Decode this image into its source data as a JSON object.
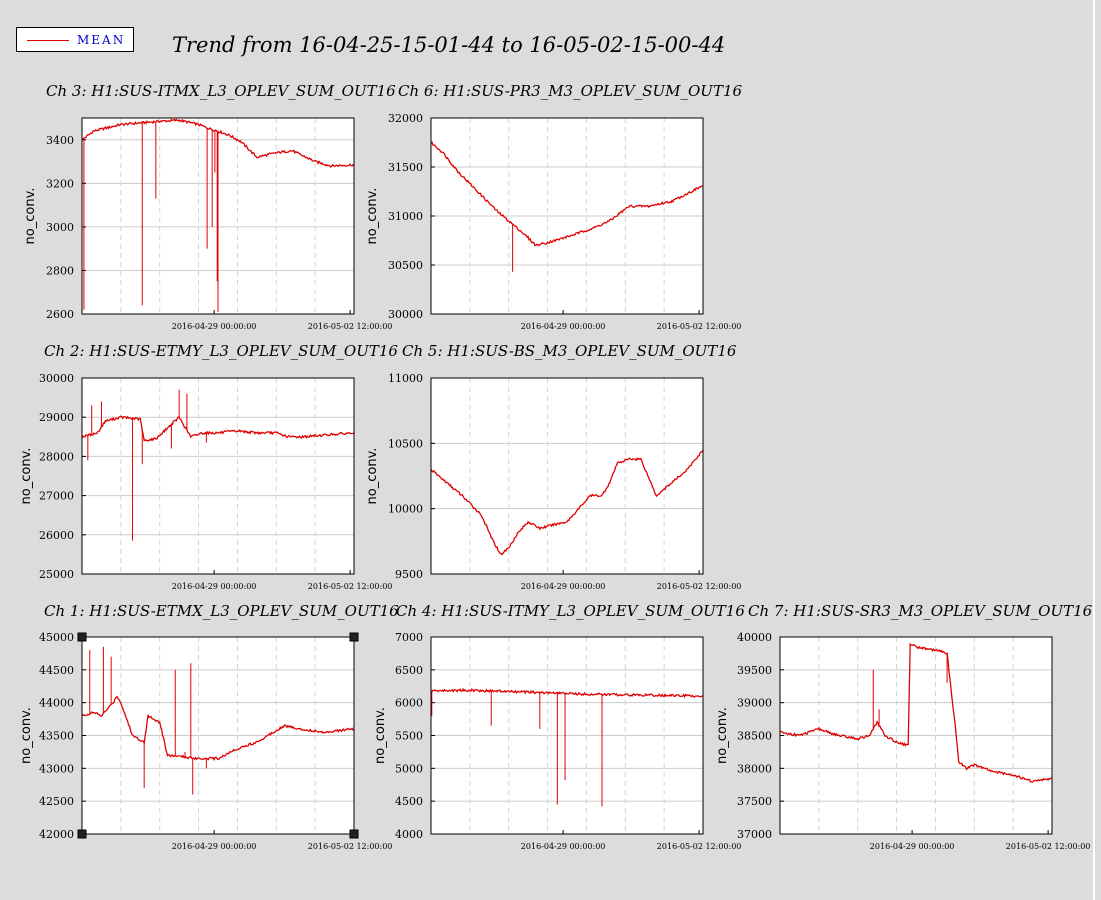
{
  "legend": {
    "label": "MEAN",
    "color": "#e00000"
  },
  "header": {
    "title": "Trend from 16-04-25-15-01-44 to 16-05-02-15-00-44"
  },
  "chart_data": [
    {
      "type": "line",
      "title": "Ch 3: H1:SUS-ITMX_L3_OPLEV_SUM_OUT16",
      "ylabel": "no_conv.",
      "ylim": [
        2600,
        3500
      ],
      "yticks": [
        2600,
        2800,
        3000,
        3200,
        3400
      ],
      "xticks": [
        "2016-04-29 00:00:00",
        "2016-05-02 12:00:00"
      ],
      "series": [
        {
          "x": [
            0,
            0.3,
            1,
            2,
            2.5,
            3,
            3.3,
            3.5,
            3.8,
            4.1,
            4.5,
            5,
            5.4,
            6,
            6.4,
            7
          ],
          "values": [
            3400,
            3440,
            3470,
            3485,
            3490,
            3470,
            3450,
            3440,
            3420,
            3390,
            3320,
            3340,
            3350,
            3300,
            3280,
            3285
          ],
          "spikes": [
            [
              0.05,
              2620
            ],
            [
              1.55,
              2640
            ],
            [
              1.9,
              3130
            ],
            [
              3.5,
              2610
            ],
            [
              3.22,
              2900
            ],
            [
              3.35,
              3000
            ],
            [
              3.48,
              2750
            ],
            [
              3.42,
              3250
            ]
          ]
        }
      ]
    },
    {
      "type": "line",
      "title": "Ch 6: H1:SUS-PR3_M3_OPLEV_SUM_OUT16",
      "ylabel": "no_conv.",
      "ylim": [
        30000,
        32000
      ],
      "yticks": [
        30000,
        30500,
        31000,
        31500,
        32000
      ],
      "xticks": [
        "2016-04-29 00:00:00",
        "2016-05-02 12:00:00"
      ],
      "series": [
        {
          "x": [
            0,
            0.3,
            0.7,
            1.2,
            1.7,
            2.3,
            2.7,
            3.2,
            3.6,
            4.2,
            4.6,
            5.1,
            5.6,
            6.2,
            7
          ],
          "values": [
            31750,
            31650,
            31450,
            31250,
            31050,
            30850,
            30700,
            30750,
            30800,
            30880,
            30950,
            31100,
            31100,
            31150,
            31310
          ],
          "spikes": [
            [
              2.1,
              30430
            ],
            [
              2.5,
              30800
            ]
          ]
        }
      ]
    },
    {
      "type": "line",
      "title": "Ch 2: H1:SUS-ETMY_L3_OPLEV_SUM_OUT16",
      "ylabel": "no_conv.",
      "ylim": [
        25000,
        30000
      ],
      "yticks": [
        25000,
        26000,
        27000,
        28000,
        29000,
        30000
      ],
      "xticks": [
        "2016-04-29 00:00:00",
        "2016-05-02 12:00:00"
      ],
      "series": [
        {
          "x": [
            0,
            0.4,
            0.6,
            1,
            1.5,
            1.6,
            1.9,
            2.5,
            2.8,
            3.1,
            3.5,
            4,
            4.5,
            5,
            5.3,
            5.7,
            6.3,
            7
          ],
          "values": [
            28500,
            28600,
            28900,
            29000,
            28950,
            28400,
            28450,
            29000,
            28500,
            28600,
            28600,
            28650,
            28600,
            28600,
            28500,
            28500,
            28550,
            28600
          ],
          "spikes": [
            [
              0.15,
              27900
            ],
            [
              0.25,
              29300
            ],
            [
              0.5,
              29400
            ],
            [
              1.3,
              25850
            ],
            [
              1.55,
              27800
            ],
            [
              2.3,
              28200
            ],
            [
              2.5,
              29700
            ],
            [
              2.7,
              29600
            ],
            [
              3.2,
              28350
            ]
          ]
        }
      ]
    },
    {
      "type": "line",
      "title": "Ch 5: H1:SUS-BS_M3_OPLEV_SUM_OUT16",
      "ylabel": "no_conv.",
      "ylim": [
        9500,
        11000
      ],
      "yticks": [
        9500,
        10000,
        10500,
        11000
      ],
      "xticks": [
        "2016-04-29 00:00:00",
        "2016-05-02 12:00:00"
      ],
      "series": [
        {
          "x": [
            0,
            0.4,
            0.8,
            1.3,
            1.6,
            1.8,
            2.0,
            2.2,
            2.5,
            2.8,
            3.2,
            3.5,
            3.8,
            4.1,
            4.4,
            4.6,
            4.8,
            5.1,
            5.4,
            5.8,
            6.2,
            6.6,
            7
          ],
          "values": [
            10300,
            10200,
            10100,
            9950,
            9750,
            9650,
            9700,
            9800,
            9900,
            9850,
            9880,
            9900,
            10000,
            10100,
            10100,
            10200,
            10350,
            10380,
            10380,
            10100,
            10200,
            10300,
            10450
          ],
          "spikes": []
        }
      ]
    },
    {
      "type": "line",
      "title": "Ch 1: H1:SUS-ETMX_L3_OPLEV_SUM_OUT16",
      "ylabel": "no_conv.",
      "ylim": [
        42000,
        45000
      ],
      "yticks": [
        42000,
        42500,
        43000,
        43500,
        44000,
        44500,
        45000
      ],
      "xticks": [
        "2016-04-29 00:00:00",
        "2016-05-02 12:00:00"
      ],
      "series": [
        {
          "x": [
            0,
            0.3,
            0.5,
            0.8,
            0.9,
            1.0,
            1.3,
            1.6,
            1.7,
            2.0,
            2.2,
            3.0,
            3.5,
            4.0,
            4.5,
            5.2,
            5.6,
            6.2,
            7
          ],
          "values": [
            43800,
            43850,
            43800,
            44000,
            44100,
            44000,
            43500,
            43400,
            43800,
            43700,
            43200,
            43150,
            43150,
            43300,
            43400,
            43650,
            43600,
            43550,
            43600
          ],
          "spikes": [
            [
              0.2,
              44800
            ],
            [
              0.55,
              44850
            ],
            [
              0.75,
              44700
            ],
            [
              1.6,
              42700
            ],
            [
              2.4,
              44500
            ],
            [
              2.65,
              43250
            ],
            [
              2.8,
              44600
            ],
            [
              2.85,
              42600
            ],
            [
              3.2,
              43000
            ]
          ]
        }
      ]
    },
    {
      "type": "line",
      "title": "Ch 4: H1:SUS-ITMY_L3_OPLEV_SUM_OUT16",
      "ylabel": "no_conv.",
      "ylim": [
        4000,
        7000
      ],
      "yticks": [
        4000,
        4500,
        5000,
        5500,
        6000,
        6500,
        7000
      ],
      "xticks": [
        "2016-04-29 00:00:00",
        "2016-05-02 12:00:00"
      ],
      "series": [
        {
          "x": [
            0,
            1,
            2,
            3,
            4,
            5,
            6,
            7
          ],
          "values": [
            6180,
            6190,
            6170,
            6150,
            6130,
            6120,
            6110,
            6100
          ],
          "spikes": [
            [
              0.02,
              5800
            ],
            [
              1.55,
              5650
            ],
            [
              2.8,
              5600
            ],
            [
              3.25,
              4450
            ],
            [
              3.45,
              4820
            ],
            [
              4.4,
              4420
            ]
          ]
        }
      ]
    },
    {
      "type": "line",
      "title": "Ch 7: H1:SUS-SR3_M3_OPLEV_SUM_OUT16",
      "ylabel": "no_conv.",
      "ylim": [
        37000,
        40000
      ],
      "yticks": [
        37000,
        37500,
        38000,
        38500,
        39000,
        39500,
        40000
      ],
      "xticks": [
        "2016-04-29 00:00:00",
        "2016-05-02 12:00:00"
      ],
      "series": [
        {
          "x": [
            0,
            0.5,
            1,
            1.5,
            2,
            2.3,
            2.5,
            2.7,
            3.0,
            3.3,
            3.35,
            3.5,
            4,
            4.3,
            4.5,
            4.6,
            4.8,
            5,
            5.5,
            6,
            6.5,
            7
          ],
          "values": [
            38550,
            38500,
            38600,
            38500,
            38450,
            38500,
            38700,
            38500,
            38400,
            38350,
            39900,
            39850,
            39800,
            39750,
            38700,
            38100,
            38000,
            38050,
            37950,
            37900,
            37800,
            37850
          ],
          "spikes": [
            [
              2.4,
              39500
            ],
            [
              2.55,
              38900
            ],
            [
              4.3,
              39300
            ]
          ]
        }
      ]
    }
  ]
}
